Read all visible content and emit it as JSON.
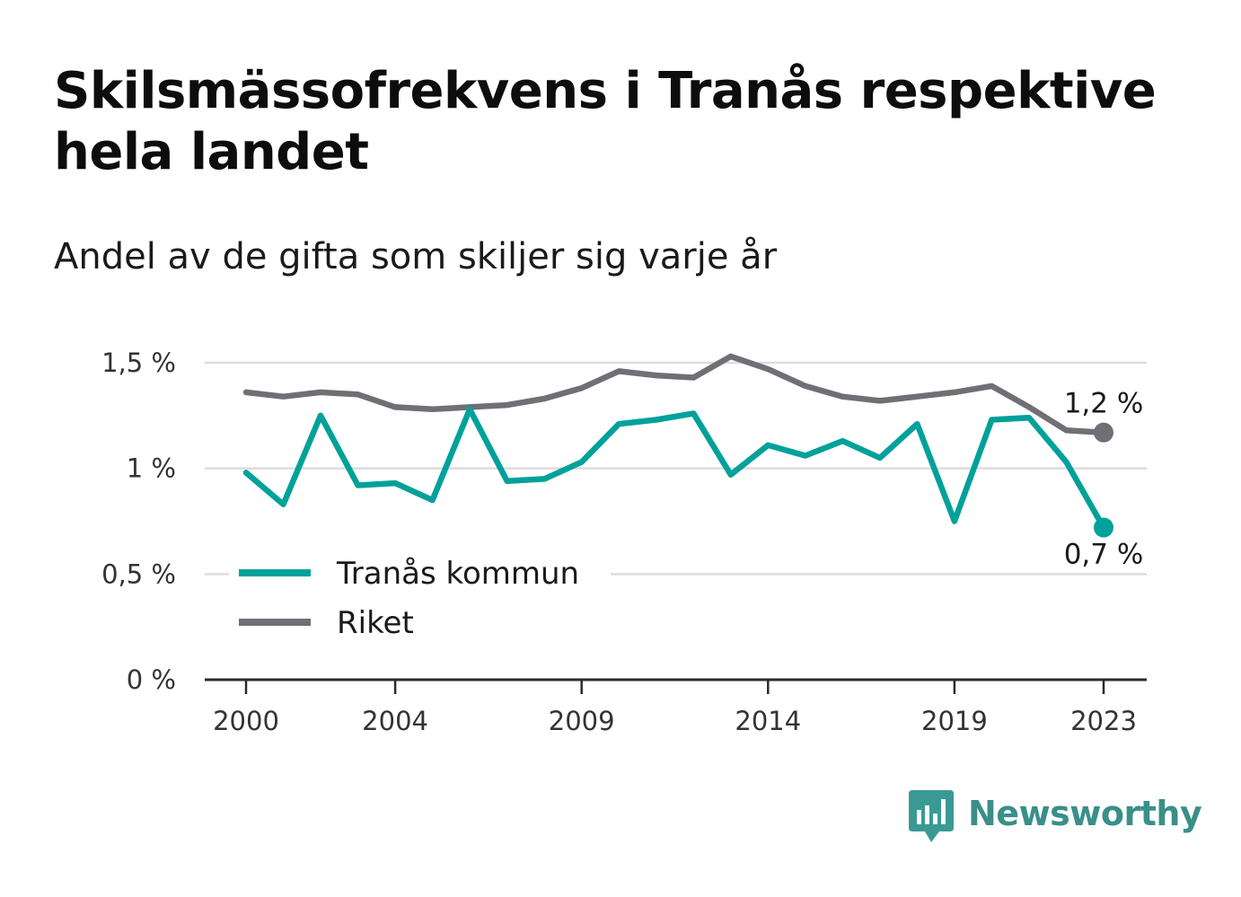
{
  "title": "Skilsmässofrekvens i Tranås respektive hela landet",
  "subtitle": "Andel av de gifta som skiljer sig varje år",
  "brand": {
    "name": "Newsworthy"
  },
  "colors": {
    "tranas": "#00a19a",
    "riket": "#6f6f75",
    "grid": "#dcdcdc",
    "axis": "#2a2a2a",
    "brand": "#3a8f8a"
  },
  "chart_data": {
    "type": "line",
    "title": "Skilsmässofrekvens i Tranås respektive hela landet",
    "subtitle": "Andel av de gifta som skiljer sig varje år",
    "x": [
      2000,
      2001,
      2002,
      2003,
      2004,
      2005,
      2006,
      2007,
      2008,
      2009,
      2010,
      2011,
      2012,
      2013,
      2014,
      2015,
      2016,
      2017,
      2018,
      2019,
      2020,
      2021,
      2022,
      2023
    ],
    "x_ticks": [
      2000,
      2004,
      2009,
      2014,
      2019,
      2023
    ],
    "x_tick_labels": [
      "2000",
      "2004",
      "2009",
      "2014",
      "2019",
      "2023"
    ],
    "y_ticks": [
      0,
      0.5,
      1,
      1.5
    ],
    "y_tick_labels": [
      "0 %",
      "0,5 %",
      "1 %",
      "1,5 %"
    ],
    "ylim": [
      0,
      1.5
    ],
    "grid": true,
    "legend_placement": "bottom-left",
    "series": [
      {
        "name": "Tranås kommun",
        "color": "#00a19a",
        "values": [
          0.98,
          0.83,
          1.25,
          0.92,
          0.93,
          0.85,
          1.28,
          0.94,
          0.95,
          1.03,
          1.21,
          1.23,
          1.26,
          0.97,
          1.11,
          1.06,
          1.13,
          1.05,
          1.21,
          0.75,
          1.23,
          1.24,
          1.03,
          0.72
        ],
        "end_label": "0,7 %"
      },
      {
        "name": "Riket",
        "color": "#6f6f75",
        "values": [
          1.36,
          1.34,
          1.36,
          1.35,
          1.29,
          1.28,
          1.29,
          1.3,
          1.33,
          1.38,
          1.46,
          1.44,
          1.43,
          1.53,
          1.47,
          1.39,
          1.34,
          1.32,
          1.34,
          1.36,
          1.39,
          1.29,
          1.18,
          1.17
        ],
        "end_label": "1,2 %"
      }
    ]
  }
}
